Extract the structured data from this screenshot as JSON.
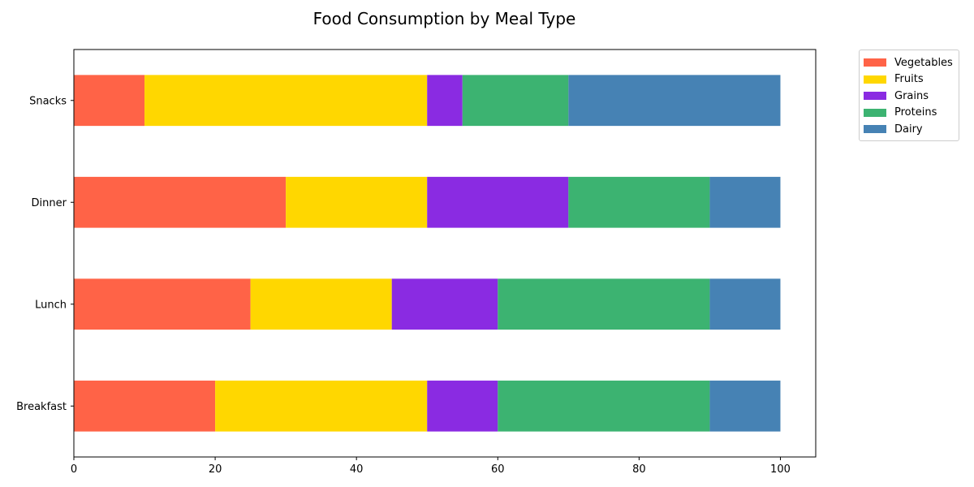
{
  "chart_data": {
    "type": "bar",
    "orientation": "horizontal",
    "stacked": true,
    "title": "Food Consumption by Meal Type",
    "xlabel": "",
    "ylabel": "",
    "xlim": [
      0,
      105
    ],
    "xticks": [
      0,
      20,
      40,
      60,
      80,
      100
    ],
    "categories": [
      "Breakfast",
      "Lunch",
      "Dinner",
      "Snacks"
    ],
    "series": [
      {
        "name": "Vegetables",
        "color": "#ff6347",
        "values": [
          20,
          25,
          30,
          10
        ]
      },
      {
        "name": "Fruits",
        "color": "#ffd700",
        "values": [
          30,
          20,
          20,
          40
        ]
      },
      {
        "name": "Grains",
        "color": "#8a2be2",
        "values": [
          10,
          15,
          20,
          5
        ]
      },
      {
        "name": "Proteins",
        "color": "#3cb371",
        "values": [
          30,
          30,
          20,
          15
        ]
      },
      {
        "name": "Dairy",
        "color": "#4682b4",
        "values": [
          10,
          10,
          10,
          30
        ]
      }
    ],
    "grid": false,
    "legend_position": "outside-top-right"
  }
}
